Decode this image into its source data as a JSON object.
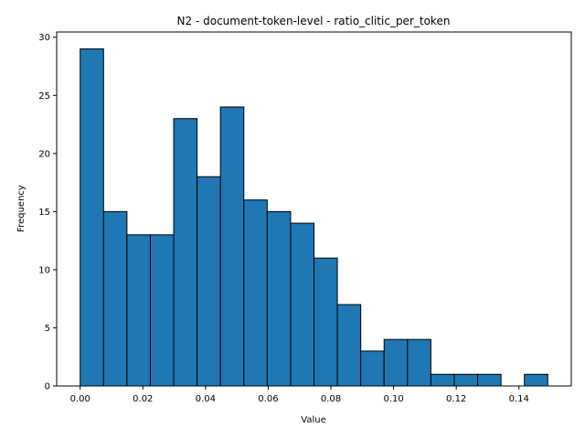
{
  "chart_data": {
    "type": "bar",
    "title": "N2 - document-token-level - ratio_clitic_per_token",
    "xlabel": "Value",
    "ylabel": "Frequency",
    "bin_start": 0.0,
    "bin_width": 0.00746,
    "values": [
      29,
      15,
      13,
      13,
      23,
      18,
      24,
      16,
      15,
      14,
      11,
      7,
      3,
      4,
      4,
      1,
      1,
      1,
      0,
      1
    ],
    "xlim": [
      -0.0075,
      0.1567
    ],
    "ylim": [
      0,
      30.45
    ],
    "xticks": [
      0.0,
      0.02,
      0.04,
      0.06,
      0.08,
      0.1,
      0.12,
      0.14
    ],
    "xtick_labels": [
      "0.00",
      "0.02",
      "0.04",
      "0.06",
      "0.08",
      "0.10",
      "0.12",
      "0.14"
    ],
    "yticks": [
      0,
      5,
      10,
      15,
      20,
      25,
      30
    ],
    "ytick_labels": [
      "0",
      "5",
      "10",
      "15",
      "20",
      "25",
      "30"
    ],
    "bar_color": "#1f77b4",
    "edge_color": "#000000",
    "grid": false
  }
}
